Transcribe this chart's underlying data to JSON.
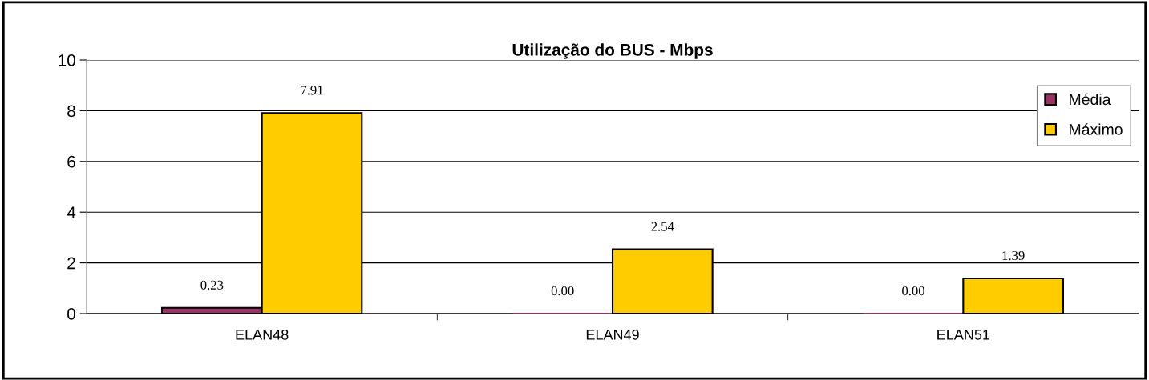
{
  "chart_data": {
    "type": "bar",
    "title": "Utilização do BUS - Mbps",
    "categories": [
      "ELAN48",
      "ELAN49",
      "ELAN51"
    ],
    "series": [
      {
        "name": "Média",
        "color": "#993366",
        "values": [
          0.23,
          0.0,
          0.0
        ],
        "value_labels": [
          "0.23",
          "0.00",
          "0.00"
        ]
      },
      {
        "name": "Máximo",
        "color": "#ffcc00",
        "values": [
          7.91,
          2.54,
          1.39
        ],
        "value_labels": [
          "7.91",
          "2.54",
          "1.39"
        ]
      }
    ],
    "ylim": [
      0,
      10
    ],
    "yticks": [
      0,
      2,
      4,
      6,
      8,
      10
    ],
    "grid": "y",
    "legend": "right"
  }
}
